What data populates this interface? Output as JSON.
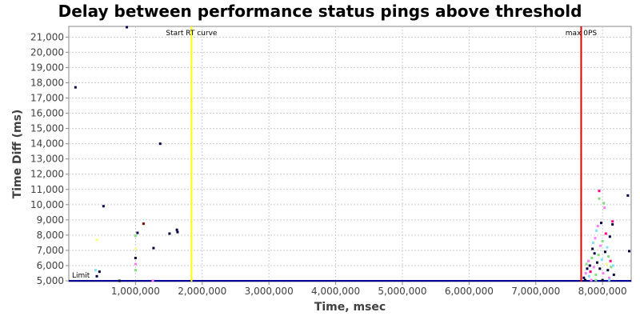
{
  "chart_data": {
    "type": "scatter",
    "title": "Delay between performance status pings above threshold",
    "xlabel": "Time, msec",
    "ylabel": "Time Diff (ms)",
    "xlim": [
      0,
      8430000
    ],
    "ylim": [
      4950,
      21700
    ],
    "x_ticks": [
      1000000,
      2000000,
      3000000,
      4000000,
      5000000,
      6000000,
      7000000,
      8000000
    ],
    "x_tick_labels": [
      "1,000,000",
      "2,000,000",
      "3,000,000",
      "4,000,000",
      "5,000,000",
      "6,000,000",
      "7,000,000",
      "8,000,000"
    ],
    "y_ticks": [
      5000,
      6000,
      7000,
      8000,
      9000,
      10000,
      11000,
      12000,
      13000,
      14000,
      15000,
      16000,
      17000,
      18000,
      19000,
      20000,
      21000
    ],
    "y_tick_labels": [
      "5,000",
      "6,000",
      "7,000",
      "8,000",
      "9,000",
      "10,000",
      "11,000",
      "12,000",
      "13,000",
      "14,000",
      "15,000",
      "16,000",
      "17,000",
      "18,000",
      "19,000",
      "20,000",
      "21,000"
    ],
    "grid": true,
    "annotations": {
      "vertical": [
        {
          "label": "Start RT curve",
          "x": 1840000,
          "color": "#ffff00"
        },
        {
          "label": "max 0PS",
          "x": 7680000,
          "color": "#e00000"
        }
      ],
      "horizontal": [
        {
          "label": "Limit",
          "y": 5000,
          "color": "#000099"
        }
      ]
    },
    "points": [
      {
        "x": 100000,
        "y": 17700,
        "color": "#000040"
      },
      {
        "x": 870000,
        "y": 21650,
        "color": "#000040"
      },
      {
        "x": 520000,
        "y": 9900,
        "color": "#000040"
      },
      {
        "x": 400000,
        "y": 5700,
        "color": "#80e0ff"
      },
      {
        "x": 420000,
        "y": 7700,
        "color": "#ffff80"
      },
      {
        "x": 460000,
        "y": 5600,
        "color": "#000040"
      },
      {
        "x": 420000,
        "y": 5300,
        "color": "#000040"
      },
      {
        "x": 760000,
        "y": 5000,
        "color": "#000040"
      },
      {
        "x": 1000000,
        "y": 7950,
        "color": "#80e080"
      },
      {
        "x": 1000000,
        "y": 7100,
        "color": "#ffff80"
      },
      {
        "x": 1000000,
        "y": 6500,
        "color": "#000040"
      },
      {
        "x": 1000000,
        "y": 6100,
        "color": "#ff80ff"
      },
      {
        "x": 1000000,
        "y": 5700,
        "color": "#80e080"
      },
      {
        "x": 1030000,
        "y": 8150,
        "color": "#000040"
      },
      {
        "x": 1120000,
        "y": 8750,
        "color": "#800000"
      },
      {
        "x": 1270000,
        "y": 7150,
        "color": "#000040"
      },
      {
        "x": 1370000,
        "y": 14000,
        "color": "#000040"
      },
      {
        "x": 1510000,
        "y": 8100,
        "color": "#000040"
      },
      {
        "x": 1620000,
        "y": 8350,
        "color": "#000040"
      },
      {
        "x": 1630000,
        "y": 8200,
        "color": "#000040"
      },
      {
        "x": 1260000,
        "y": 5000,
        "color": "#ff80ff"
      },
      {
        "x": 7720000,
        "y": 5200,
        "color": "#000040"
      },
      {
        "x": 7750000,
        "y": 5500,
        "color": "#ff80ff"
      },
      {
        "x": 7760000,
        "y": 6100,
        "color": "#80e080"
      },
      {
        "x": 7770000,
        "y": 5800,
        "color": "#000040"
      },
      {
        "x": 7790000,
        "y": 6300,
        "color": "#ff80ff"
      },
      {
        "x": 7800000,
        "y": 5300,
        "color": "#80e0ff"
      },
      {
        "x": 7810000,
        "y": 6000,
        "color": "#000040"
      },
      {
        "x": 7820000,
        "y": 5600,
        "color": "#ff0080"
      },
      {
        "x": 7840000,
        "y": 6500,
        "color": "#80e080"
      },
      {
        "x": 7850000,
        "y": 7100,
        "color": "#000040"
      },
      {
        "x": 7860000,
        "y": 7500,
        "color": "#80e0ff"
      },
      {
        "x": 7870000,
        "y": 5900,
        "color": "#ff80ff"
      },
      {
        "x": 7880000,
        "y": 6800,
        "color": "#000040"
      },
      {
        "x": 7890000,
        "y": 7800,
        "color": "#ff80ff"
      },
      {
        "x": 7900000,
        "y": 5400,
        "color": "#80e080"
      },
      {
        "x": 7910000,
        "y": 8300,
        "color": "#80e0ff"
      },
      {
        "x": 7920000,
        "y": 6200,
        "color": "#000040"
      },
      {
        "x": 7930000,
        "y": 8600,
        "color": "#ff80ff"
      },
      {
        "x": 7940000,
        "y": 6700,
        "color": "#80e080"
      },
      {
        "x": 7950000,
        "y": 10400,
        "color": "#80e080"
      },
      {
        "x": 7950000,
        "y": 10900,
        "color": "#ff0080"
      },
      {
        "x": 7960000,
        "y": 5800,
        "color": "#000040"
      },
      {
        "x": 7970000,
        "y": 7300,
        "color": "#ff80ff"
      },
      {
        "x": 7980000,
        "y": 8800,
        "color": "#000040"
      },
      {
        "x": 7990000,
        "y": 6400,
        "color": "#80e0ff"
      },
      {
        "x": 8000000,
        "y": 7600,
        "color": "#80e080"
      },
      {
        "x": 8010000,
        "y": 5500,
        "color": "#ff80ff"
      },
      {
        "x": 8020000,
        "y": 10100,
        "color": "#80e080"
      },
      {
        "x": 8030000,
        "y": 9800,
        "color": "#ff80ff"
      },
      {
        "x": 8040000,
        "y": 6900,
        "color": "#000040"
      },
      {
        "x": 8050000,
        "y": 8100,
        "color": "#ff0080"
      },
      {
        "x": 8060000,
        "y": 6100,
        "color": "#ffff80"
      },
      {
        "x": 8070000,
        "y": 7200,
        "color": "#80e0ff"
      },
      {
        "x": 8080000,
        "y": 5700,
        "color": "#000040"
      },
      {
        "x": 8090000,
        "y": 6600,
        "color": "#80e080"
      },
      {
        "x": 8100000,
        "y": 5200,
        "color": "#ff80ff"
      },
      {
        "x": 8110000,
        "y": 7900,
        "color": "#000040"
      },
      {
        "x": 8120000,
        "y": 6300,
        "color": "#ff0080"
      },
      {
        "x": 8130000,
        "y": 5900,
        "color": "#80e080"
      },
      {
        "x": 8150000,
        "y": 8900,
        "color": "#ff0080"
      },
      {
        "x": 8150000,
        "y": 8700,
        "color": "#000040"
      },
      {
        "x": 8160000,
        "y": 6000,
        "color": "#80e0ff"
      },
      {
        "x": 8170000,
        "y": 5400,
        "color": "#000040"
      },
      {
        "x": 7740000,
        "y": 5050,
        "color": "#000040"
      },
      {
        "x": 7830000,
        "y": 5050,
        "color": "#ff80ff"
      },
      {
        "x": 7900000,
        "y": 5050,
        "color": "#80e080"
      },
      {
        "x": 8000000,
        "y": 5050,
        "color": "#000040"
      },
      {
        "x": 8100000,
        "y": 5050,
        "color": "#80e0ff"
      },
      {
        "x": 8380000,
        "y": 10600,
        "color": "#000040"
      },
      {
        "x": 8400000,
        "y": 6950,
        "color": "#000040"
      }
    ]
  }
}
